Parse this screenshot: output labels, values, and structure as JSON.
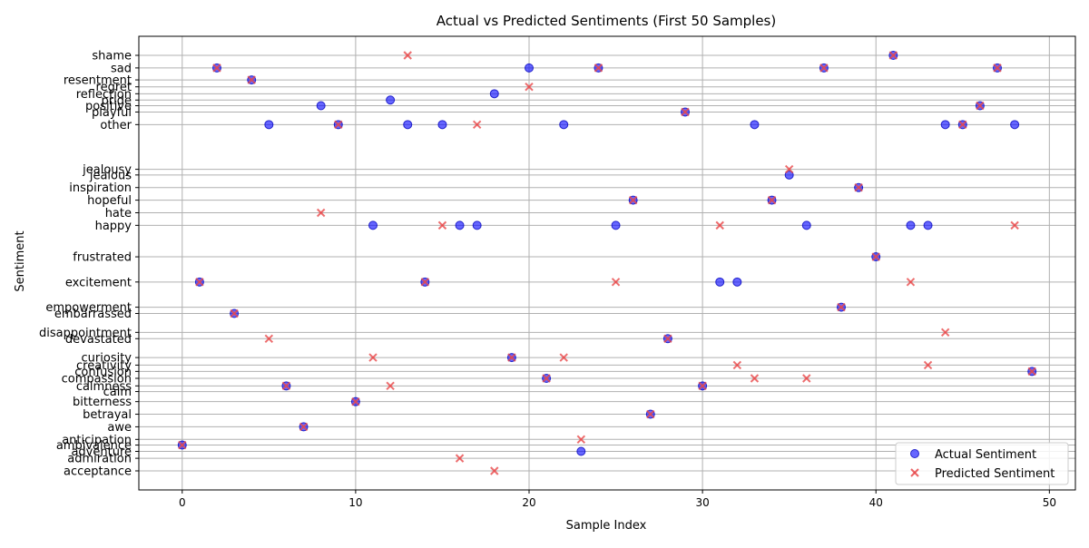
{
  "chart_data": {
    "type": "scatter",
    "title": "Actual vs Predicted Sentiments (First 50 Samples)",
    "xlabel": "Sample Index",
    "ylabel": "Sentiment",
    "xlim": [
      -2.5,
      51.5
    ],
    "xticks": [
      0,
      10,
      20,
      30,
      40,
      50
    ],
    "grid": true,
    "legend_position": "bottom-right",
    "y_categories": [
      {
        "label": "acceptance",
        "value": 0
      },
      {
        "label": "admiration",
        "value": 1
      },
      {
        "label": "adventure",
        "value": 1.55
      },
      {
        "label": "ambivalence",
        "value": 2.05
      },
      {
        "label": "anticipation",
        "value": 2.5
      },
      {
        "label": "awe",
        "value": 3.5
      },
      {
        "label": "betrayal",
        "value": 4.5
      },
      {
        "label": "bitterness",
        "value": 5.5
      },
      {
        "label": "calm",
        "value": 6.3
      },
      {
        "label": "calmness",
        "value": 6.75
      },
      {
        "label": "compassion",
        "value": 7.35
      },
      {
        "label": "confusion",
        "value": 7.9
      },
      {
        "label": "creativity",
        "value": 8.4
      },
      {
        "label": "curiosity",
        "value": 9.0
      },
      {
        "label": "devastated",
        "value": 10.5
      },
      {
        "label": "disappointment",
        "value": 11.0
      },
      {
        "label": "embarrassed",
        "value": 12.5
      },
      {
        "label": "empowerment",
        "value": 13.0
      },
      {
        "label": "excitement",
        "value": 15.0
      },
      {
        "label": "frustrated",
        "value": 17.0
      },
      {
        "label": "happy",
        "value": 19.5
      },
      {
        "label": "hate",
        "value": 20.5
      },
      {
        "label": "hopeful",
        "value": 21.5
      },
      {
        "label": "inspiration",
        "value": 22.5
      },
      {
        "label": "jealous",
        "value": 23.5
      },
      {
        "label": "jealousy",
        "value": 23.95
      },
      {
        "label": "other",
        "value": 27.5
      },
      {
        "label": "playful",
        "value": 28.5
      },
      {
        "label": "positive",
        "value": 29.0
      },
      {
        "label": "pride",
        "value": 29.45
      },
      {
        "label": "reflection",
        "value": 29.95
      },
      {
        "label": "regret",
        "value": 30.5
      },
      {
        "label": "resentment",
        "value": 31.05
      },
      {
        "label": "sad",
        "value": 32.0
      },
      {
        "label": "shame",
        "value": 33.0
      }
    ],
    "series": [
      {
        "name": "Actual Sentiment",
        "color": "#0000ff",
        "marker": "circle",
        "points": [
          [
            0,
            "ambivalence"
          ],
          [
            1,
            "excitement"
          ],
          [
            2,
            "sad"
          ],
          [
            3,
            "embarrassed"
          ],
          [
            4,
            "resentment"
          ],
          [
            5,
            "other"
          ],
          [
            6,
            "calmness"
          ],
          [
            7,
            "awe"
          ],
          [
            8,
            "positive"
          ],
          [
            9,
            "other"
          ],
          [
            10,
            "bitterness"
          ],
          [
            11,
            "happy"
          ],
          [
            12,
            "pride"
          ],
          [
            13,
            "other"
          ],
          [
            14,
            "excitement"
          ],
          [
            15,
            "other"
          ],
          [
            16,
            "happy"
          ],
          [
            17,
            "happy"
          ],
          [
            18,
            "reflection"
          ],
          [
            19,
            "curiosity"
          ],
          [
            20,
            "sad"
          ],
          [
            21,
            "compassion"
          ],
          [
            22,
            "other"
          ],
          [
            23,
            "adventure"
          ],
          [
            24,
            "sad"
          ],
          [
            25,
            "happy"
          ],
          [
            26,
            "hopeful"
          ],
          [
            27,
            "betrayal"
          ],
          [
            28,
            "devastated"
          ],
          [
            29,
            "playful"
          ],
          [
            30,
            "calmness"
          ],
          [
            31,
            "excitement"
          ],
          [
            32,
            "excitement"
          ],
          [
            33,
            "other"
          ],
          [
            34,
            "hopeful"
          ],
          [
            35,
            "jealous"
          ],
          [
            36,
            "happy"
          ],
          [
            37,
            "sad"
          ],
          [
            38,
            "empowerment"
          ],
          [
            39,
            "inspiration"
          ],
          [
            40,
            "frustrated"
          ],
          [
            41,
            "shame"
          ],
          [
            42,
            "happy"
          ],
          [
            43,
            "happy"
          ],
          [
            44,
            "other"
          ],
          [
            45,
            "other"
          ],
          [
            46,
            "positive"
          ],
          [
            47,
            "sad"
          ],
          [
            48,
            "other"
          ],
          [
            49,
            "confusion"
          ]
        ]
      },
      {
        "name": "Predicted Sentiment",
        "color": "#e8484a",
        "marker": "x",
        "points": [
          [
            0,
            "ambivalence"
          ],
          [
            1,
            "excitement"
          ],
          [
            2,
            "sad"
          ],
          [
            3,
            "embarrassed"
          ],
          [
            4,
            "resentment"
          ],
          [
            5,
            "devastated"
          ],
          [
            6,
            "calmness"
          ],
          [
            7,
            "awe"
          ],
          [
            8,
            "hate"
          ],
          [
            9,
            "other"
          ],
          [
            10,
            "bitterness"
          ],
          [
            11,
            "curiosity"
          ],
          [
            12,
            "calmness"
          ],
          [
            13,
            "shame"
          ],
          [
            14,
            "excitement"
          ],
          [
            15,
            "happy"
          ],
          [
            16,
            "admiration"
          ],
          [
            17,
            "other"
          ],
          [
            18,
            "acceptance"
          ],
          [
            19,
            "curiosity"
          ],
          [
            20,
            "regret"
          ],
          [
            21,
            "compassion"
          ],
          [
            22,
            "curiosity"
          ],
          [
            23,
            "anticipation"
          ],
          [
            24,
            "sad"
          ],
          [
            25,
            "excitement"
          ],
          [
            26,
            "hopeful"
          ],
          [
            27,
            "betrayal"
          ],
          [
            28,
            "devastated"
          ],
          [
            29,
            "playful"
          ],
          [
            30,
            "calmness"
          ],
          [
            31,
            "happy"
          ],
          [
            32,
            "creativity"
          ],
          [
            33,
            "compassion"
          ],
          [
            34,
            "hopeful"
          ],
          [
            35,
            "jealousy"
          ],
          [
            36,
            "compassion"
          ],
          [
            37,
            "sad"
          ],
          [
            38,
            "empowerment"
          ],
          [
            39,
            "inspiration"
          ],
          [
            40,
            "frustrated"
          ],
          [
            41,
            "shame"
          ],
          [
            42,
            "excitement"
          ],
          [
            43,
            "creativity"
          ],
          [
            44,
            "disappointment"
          ],
          [
            45,
            "other"
          ],
          [
            46,
            "positive"
          ],
          [
            47,
            "sad"
          ],
          [
            48,
            "happy"
          ],
          [
            49,
            "confusion"
          ]
        ]
      }
    ]
  }
}
